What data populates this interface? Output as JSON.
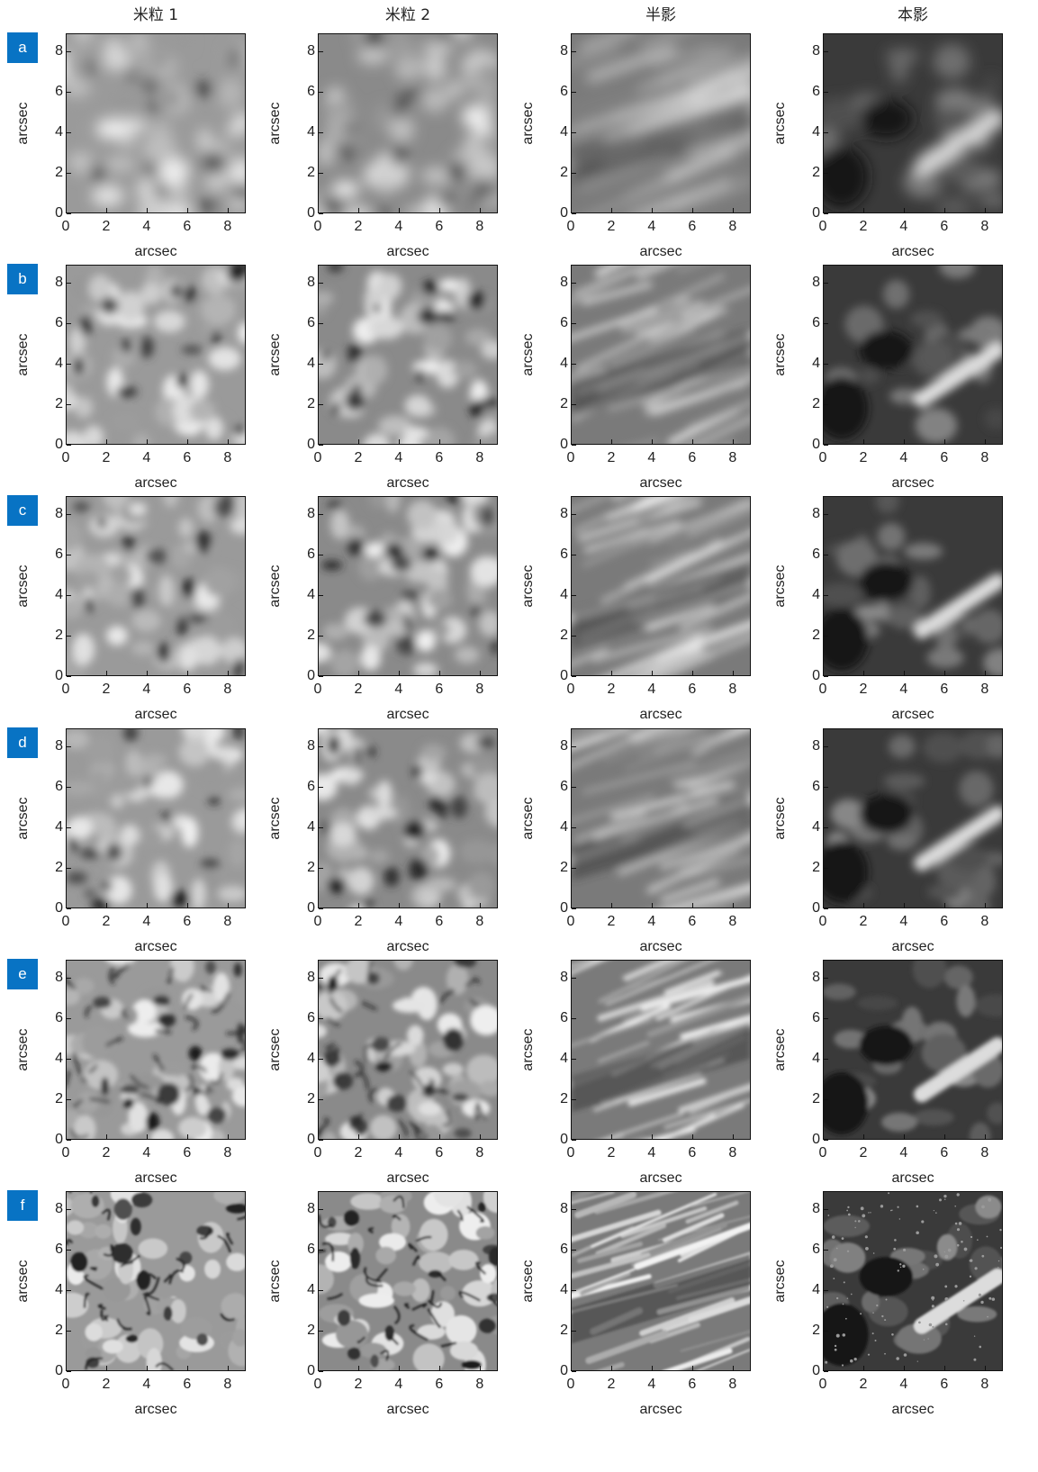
{
  "columns": [
    "米粒 1",
    "米粒 2",
    "半影",
    "本影"
  ],
  "rows": [
    "a",
    "b",
    "c",
    "d",
    "e",
    "f"
  ],
  "axis": {
    "xlabel": "arcsec",
    "ylabel": "arcsec",
    "ticks": [
      "0",
      "2",
      "4",
      "6",
      "8"
    ]
  },
  "colors": {
    "badge": "#0873c4",
    "frame": "#111111"
  }
}
